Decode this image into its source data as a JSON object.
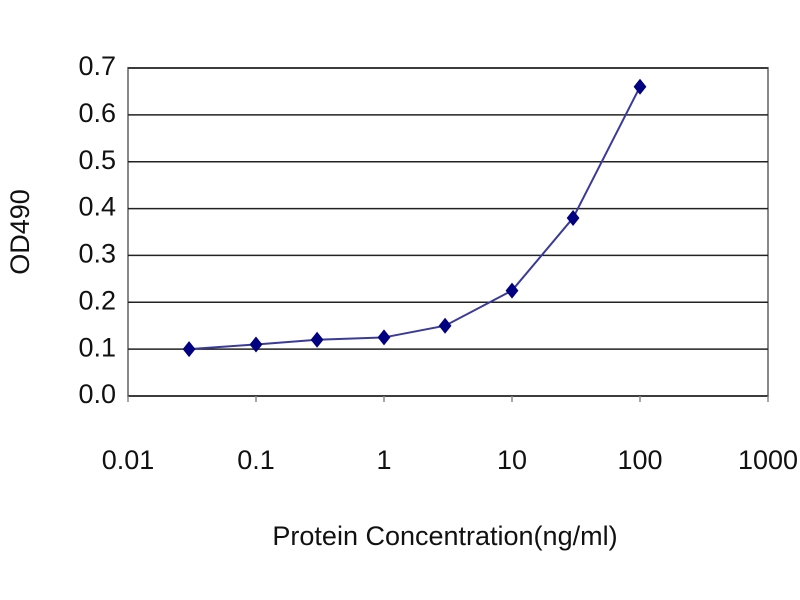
{
  "chart_data": {
    "type": "line",
    "x_label": "Protein Concentration(ng/ml)",
    "y_label": "OD490",
    "x": [
      0.03,
      0.1,
      0.3,
      1,
      3,
      10,
      30,
      100
    ],
    "series": [
      {
        "name": "OD490",
        "color": "#000080",
        "line_color": "#3a3a9a",
        "values": [
          0.1,
          0.11,
          0.12,
          0.125,
          0.15,
          0.225,
          0.38,
          0.66
        ]
      }
    ],
    "x_log": true,
    "xlim": [
      0.01,
      1000
    ],
    "xticks": [
      0.01,
      0.1,
      1,
      10,
      100,
      1000
    ],
    "ylim": [
      0,
      0.7
    ],
    "yticks": [
      {
        "value": 0,
        "label": "0.0"
      },
      0.1,
      0.2,
      0.3,
      0.4,
      0.5,
      0.6,
      0.7
    ],
    "grid": true
  }
}
